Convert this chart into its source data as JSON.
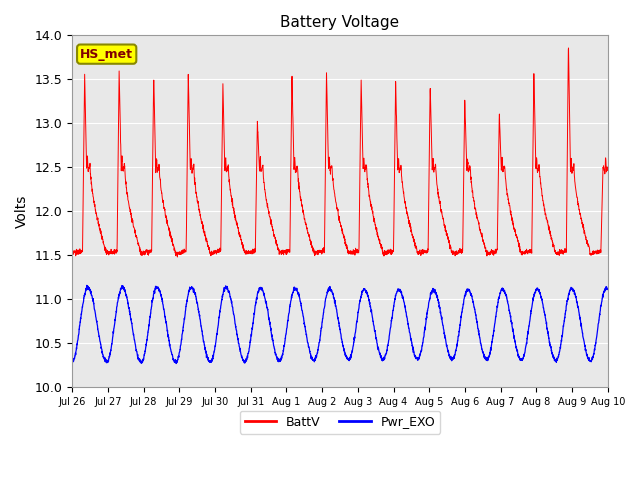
{
  "title": "Battery Voltage",
  "ylabel": "Volts",
  "ylim": [
    10.0,
    14.0
  ],
  "yticks": [
    10.0,
    10.5,
    11.0,
    11.5,
    12.0,
    12.5,
    13.0,
    13.5,
    14.0
  ],
  "xtick_labels": [
    "Jul 26",
    "Jul 27",
    "Jul 28",
    "Jul 29",
    "Jul 30",
    "Jul 31",
    "Aug 1",
    "Aug 2",
    "Aug 3",
    "Aug 4",
    "Aug 5",
    "Aug 6",
    "Aug 7",
    "Aug 8",
    "Aug 9",
    "Aug 10"
  ],
  "background_color": "#e8e8e8",
  "fig_background": "#ffffff",
  "station_label": "HS_met",
  "station_label_bg": "#ffff00",
  "station_label_border": "#888800",
  "station_label_color": "#800000",
  "legend_labels": [
    "BattV",
    "Pwr_EXO"
  ],
  "legend_colors": [
    "red",
    "blue"
  ],
  "batt_base": 11.52,
  "batt_peaks": [
    13.58,
    13.62,
    13.56,
    13.57,
    13.48,
    13.02,
    13.57,
    13.58,
    13.52,
    13.48,
    13.45,
    13.28,
    13.12,
    13.57,
    13.92,
    12.5
  ],
  "batt_mid_dip": 12.45,
  "pwr_min": 10.3,
  "pwr_max": 11.12,
  "n_days": 15.5,
  "n_points": 3000
}
